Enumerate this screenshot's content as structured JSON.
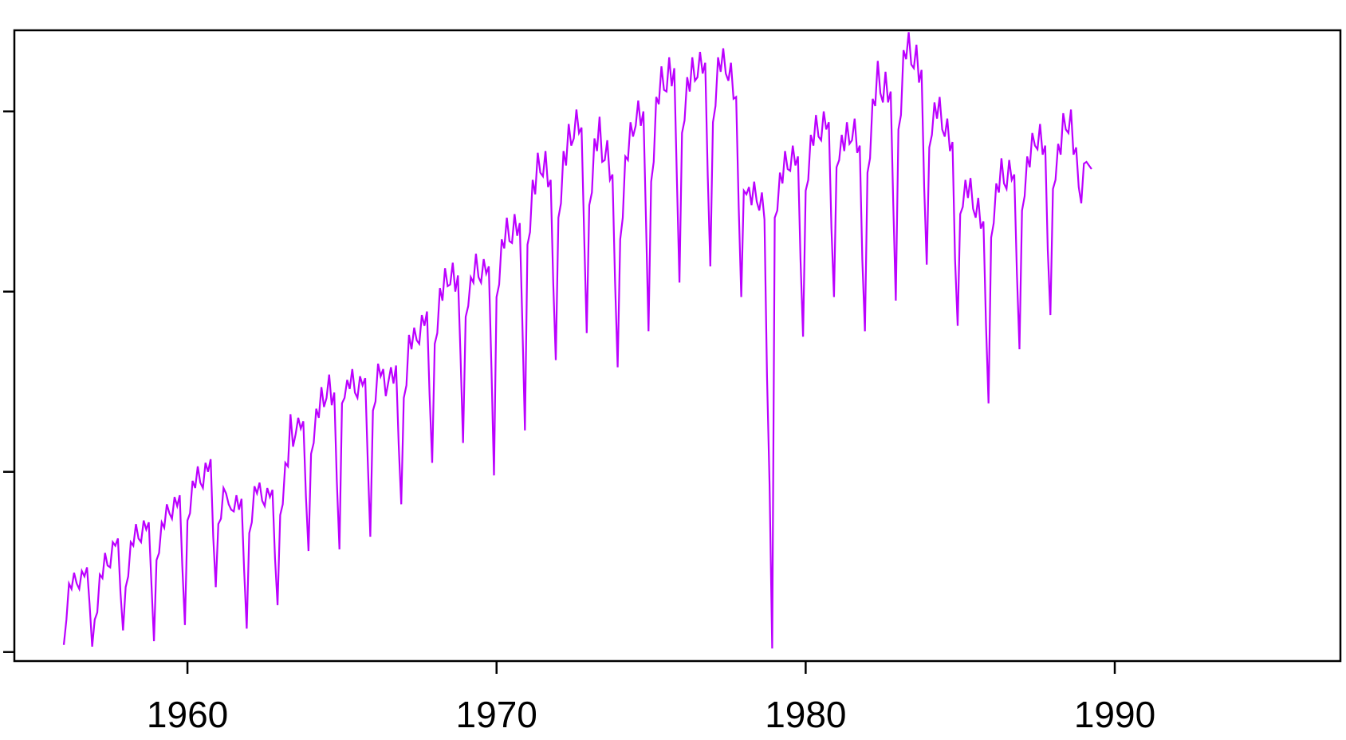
{
  "chart_data": {
    "type": "line",
    "title": "",
    "xlabel": "",
    "ylabel": "",
    "x_ticks": [
      "1960",
      "1970",
      "1980",
      "1990"
    ],
    "x_tick_values": [
      1960,
      1970,
      1980,
      1990
    ],
    "y_ticks": [
      1,
      2,
      3,
      4
    ],
    "y_tick_labels_visible": false,
    "xlim": [
      1954.4,
      1997.3
    ],
    "ylim": [
      0.95,
      4.45
    ],
    "grid": false,
    "legend": "none",
    "colors": {
      "series": "#bb00ff",
      "axis": "#000000",
      "background": "#ffffff"
    },
    "series": [
      {
        "frequency": "monthly",
        "start": "1956-01",
        "values": [
          1.04,
          1.18,
          1.38,
          1.35,
          1.44,
          1.38,
          1.35,
          1.45,
          1.42,
          1.47,
          1.27,
          1.03,
          1.18,
          1.22,
          1.43,
          1.41,
          1.55,
          1.48,
          1.47,
          1.61,
          1.59,
          1.63,
          1.33,
          1.12,
          1.36,
          1.42,
          1.61,
          1.59,
          1.71,
          1.63,
          1.61,
          1.73,
          1.68,
          1.72,
          1.38,
          1.06,
          1.51,
          1.55,
          1.72,
          1.69,
          1.82,
          1.77,
          1.74,
          1.86,
          1.81,
          1.87,
          1.48,
          1.15,
          1.73,
          1.77,
          1.95,
          1.91,
          2.03,
          1.94,
          1.91,
          2.05,
          2.0,
          2.07,
          1.64,
          1.36,
          1.71,
          1.74,
          1.91,
          1.88,
          1.82,
          1.79,
          1.78,
          1.87,
          1.79,
          1.85,
          1.46,
          1.13,
          1.66,
          1.72,
          1.92,
          1.88,
          1.94,
          1.84,
          1.81,
          1.91,
          1.86,
          1.9,
          1.52,
          1.26,
          1.76,
          1.82,
          2.05,
          2.03,
          2.32,
          2.14,
          2.21,
          2.3,
          2.24,
          2.28,
          1.86,
          1.56,
          2.1,
          2.16,
          2.35,
          2.3,
          2.47,
          2.36,
          2.41,
          2.54,
          2.37,
          2.44,
          1.95,
          1.57,
          2.38,
          2.41,
          2.51,
          2.46,
          2.57,
          2.44,
          2.41,
          2.53,
          2.48,
          2.52,
          2.06,
          1.64,
          2.34,
          2.39,
          2.6,
          2.53,
          2.57,
          2.42,
          2.5,
          2.58,
          2.49,
          2.59,
          2.15,
          1.82,
          2.41,
          2.48,
          2.76,
          2.68,
          2.8,
          2.73,
          2.71,
          2.87,
          2.81,
          2.89,
          2.43,
          2.05,
          2.71,
          2.77,
          3.02,
          2.95,
          3.13,
          3.03,
          3.04,
          3.16,
          3.0,
          3.09,
          2.65,
          2.16,
          2.86,
          2.92,
          3.08,
          3.05,
          3.21,
          3.08,
          3.05,
          3.18,
          3.1,
          3.14,
          2.58,
          1.98,
          2.97,
          3.04,
          3.29,
          3.24,
          3.41,
          3.28,
          3.27,
          3.43,
          3.31,
          3.38,
          2.84,
          2.23,
          3.26,
          3.33,
          3.62,
          3.54,
          3.77,
          3.66,
          3.64,
          3.78,
          3.58,
          3.62,
          3.05,
          2.62,
          3.41,
          3.49,
          3.78,
          3.7,
          3.93,
          3.81,
          3.85,
          4.01,
          3.88,
          3.91,
          3.31,
          2.77,
          3.48,
          3.55,
          3.85,
          3.78,
          3.97,
          3.72,
          3.73,
          3.84,
          3.62,
          3.65,
          3.06,
          2.58,
          3.29,
          3.41,
          3.75,
          3.73,
          3.94,
          3.86,
          3.92,
          4.06,
          3.92,
          4.0,
          3.4,
          2.78,
          3.61,
          3.72,
          4.08,
          4.04,
          4.25,
          4.12,
          4.11,
          4.3,
          4.14,
          4.24,
          3.62,
          3.05,
          3.88,
          3.95,
          4.19,
          4.11,
          4.3,
          4.17,
          4.19,
          4.33,
          4.21,
          4.27,
          3.64,
          3.14,
          3.94,
          4.03,
          4.3,
          4.22,
          4.35,
          4.21,
          4.17,
          4.27,
          4.07,
          4.08,
          3.47,
          2.97,
          3.56,
          3.54,
          3.58,
          3.48,
          3.61,
          3.5,
          3.45,
          3.55,
          3.4,
          2.53,
          1.93,
          1.02,
          3.41,
          3.45,
          3.66,
          3.6,
          3.78,
          3.68,
          3.67,
          3.81,
          3.7,
          3.75,
          3.18,
          2.75,
          3.56,
          3.62,
          3.87,
          3.81,
          3.98,
          3.86,
          3.84,
          4.0,
          3.9,
          3.94,
          3.35,
          2.97,
          3.69,
          3.73,
          3.87,
          3.78,
          3.94,
          3.82,
          3.84,
          3.96,
          3.77,
          3.81,
          3.18,
          2.78,
          3.66,
          3.74,
          4.07,
          4.03,
          4.28,
          4.1,
          4.05,
          4.22,
          4.05,
          4.11,
          3.49,
          2.95,
          3.9,
          3.98,
          4.34,
          4.29,
          4.44,
          4.26,
          4.24,
          4.37,
          4.16,
          4.23,
          3.58,
          3.15,
          3.8,
          3.87,
          4.05,
          3.96,
          4.08,
          3.9,
          3.86,
          3.96,
          3.78,
          3.83,
          3.18,
          2.81,
          3.43,
          3.47,
          3.62,
          3.52,
          3.63,
          3.46,
          3.41,
          3.52,
          3.35,
          3.39,
          2.82,
          2.38,
          3.3,
          3.38,
          3.6,
          3.55,
          3.74,
          3.6,
          3.57,
          3.73,
          3.62,
          3.65,
          3.1,
          2.68,
          3.45,
          3.53,
          3.75,
          3.69,
          3.88,
          3.81,
          3.79,
          3.93,
          3.76,
          3.81,
          3.23,
          2.87,
          3.57,
          3.62,
          3.82,
          3.76,
          3.99,
          3.9,
          3.88,
          4.01,
          3.76,
          3.8,
          3.58,
          3.49,
          3.71,
          3.72,
          3.7,
          3.68
        ]
      }
    ]
  }
}
